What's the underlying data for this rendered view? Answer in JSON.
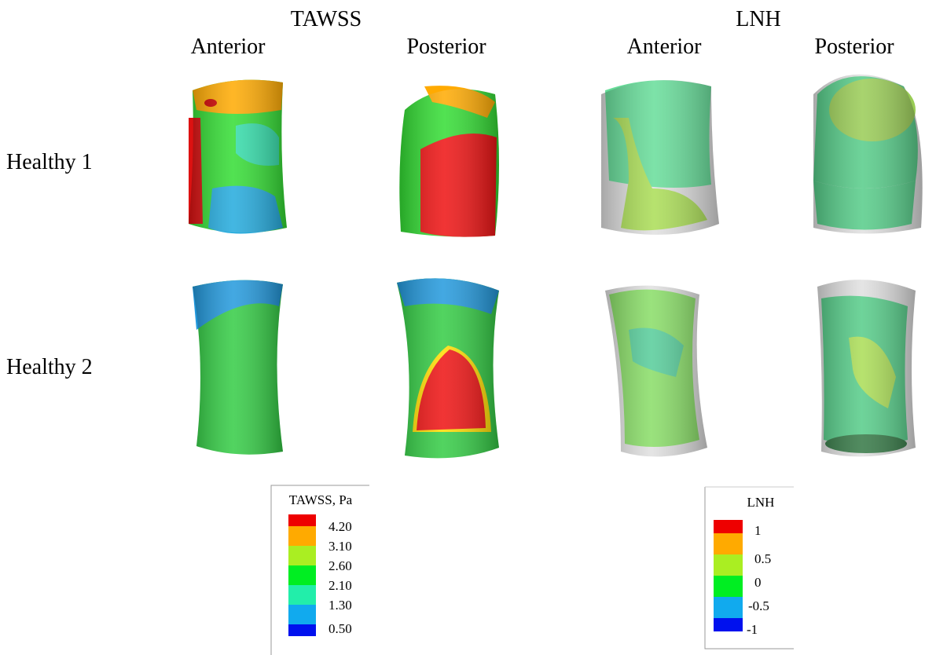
{
  "groups": [
    {
      "title": "TAWSS",
      "views": [
        "Anterior",
        "Posterior"
      ]
    },
    {
      "title": "LNH",
      "views": [
        "Anterior",
        "Posterior"
      ]
    }
  ],
  "rows": [
    "Healthy 1",
    "Healthy 2"
  ],
  "legends": [
    {
      "title": "TAWSS, Pa",
      "labels": [
        "4.20",
        "3.10",
        "2.60",
        "2.10",
        "1.30",
        "0.50"
      ]
    },
    {
      "title": "LNH",
      "labels": [
        "1",
        "0.5",
        "0",
        "-0.5",
        "-1"
      ]
    }
  ]
}
